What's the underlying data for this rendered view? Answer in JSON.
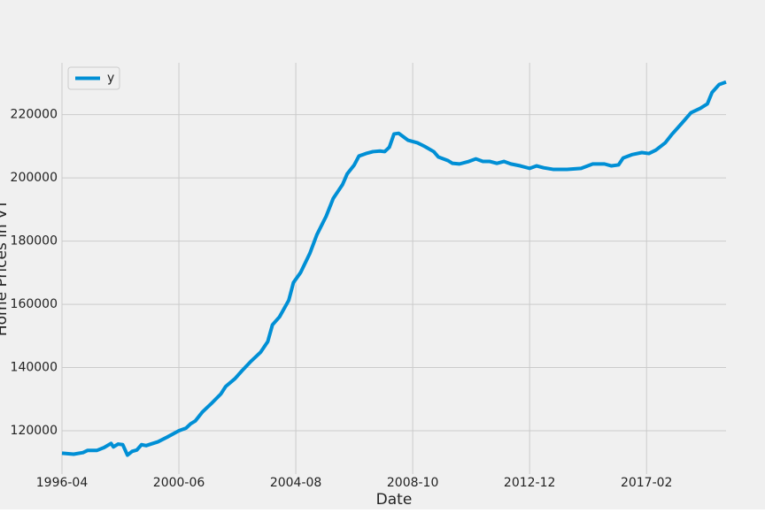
{
  "chart_data": {
    "type": "line",
    "x_label": "Date",
    "y_label": "Home Prices in VT",
    "x": [
      "1996-04",
      "1996-09",
      "1997-01",
      "1997-03",
      "1997-07",
      "1997-10",
      "1998-01",
      "1998-02",
      "1998-04",
      "1998-06",
      "1998-08",
      "1998-10",
      "1998-12",
      "1999-02",
      "1999-04",
      "1999-06",
      "1999-09",
      "2000-01",
      "2000-06",
      "2000-09",
      "2000-11",
      "2001-01",
      "2001-04",
      "2001-08",
      "2001-12",
      "2002-02",
      "2002-06",
      "2002-09",
      "2003-01",
      "2003-05",
      "2003-08",
      "2003-10",
      "2004-01",
      "2004-05",
      "2004-07",
      "2004-10",
      "2005-02",
      "2005-05",
      "2005-09",
      "2005-12",
      "2006-04",
      "2006-06",
      "2006-09",
      "2006-11",
      "2007-02",
      "2007-05",
      "2007-08",
      "2007-10",
      "2007-12",
      "2008-02",
      "2008-04",
      "2008-06",
      "2008-08",
      "2008-12",
      "2009-03",
      "2009-07",
      "2009-09",
      "2010-01",
      "2010-03",
      "2010-06",
      "2010-10",
      "2011-01",
      "2011-04",
      "2011-07",
      "2011-10",
      "2012-01",
      "2012-04",
      "2012-08",
      "2012-12",
      "2013-03",
      "2013-06",
      "2013-10",
      "2014-04",
      "2014-10",
      "2015-03",
      "2015-08",
      "2015-11",
      "2016-02",
      "2016-04",
      "2016-08",
      "2016-12",
      "2017-03",
      "2017-06",
      "2017-10",
      "2018-01",
      "2018-05",
      "2018-09",
      "2019-01",
      "2019-04",
      "2019-06",
      "2019-09",
      "2019-12"
    ],
    "series": [
      {
        "name": "y",
        "color": "#008fd5",
        "values": [
          112900,
          112600,
          113100,
          113800,
          113800,
          114700,
          116000,
          114900,
          115800,
          115600,
          112300,
          113500,
          113900,
          115600,
          115300,
          115800,
          116500,
          118000,
          120000,
          120800,
          122200,
          123100,
          125900,
          128700,
          131700,
          134000,
          136500,
          139000,
          142100,
          144900,
          148200,
          153500,
          156000,
          161300,
          166900,
          170000,
          176100,
          182000,
          187900,
          193500,
          197900,
          201300,
          204100,
          206900,
          207700,
          208300,
          208500,
          208300,
          209700,
          213900,
          214100,
          213000,
          211900,
          211100,
          210000,
          208300,
          206600,
          205500,
          204600,
          204400,
          205200,
          206000,
          205200,
          205200,
          204600,
          205200,
          204400,
          203800,
          203000,
          203800,
          203200,
          202700,
          202700,
          203000,
          204400,
          204400,
          203800,
          204100,
          206300,
          207400,
          208000,
          207700,
          208800,
          211100,
          213900,
          217200,
          220600,
          222000,
          223400,
          227000,
          229500,
          230300
        ]
      }
    ],
    "xlim": [
      "1996-04",
      "2019-12"
    ],
    "xticks": [
      "1996-04",
      "2000-06",
      "2004-08",
      "2008-10",
      "2012-12",
      "2017-02"
    ],
    "ylim": [
      106300,
      236400
    ],
    "yticks": [
      120000,
      140000,
      160000,
      180000,
      200000,
      220000
    ],
    "grid": true,
    "legend": "upper left",
    "background": "#f0f0f0"
  }
}
